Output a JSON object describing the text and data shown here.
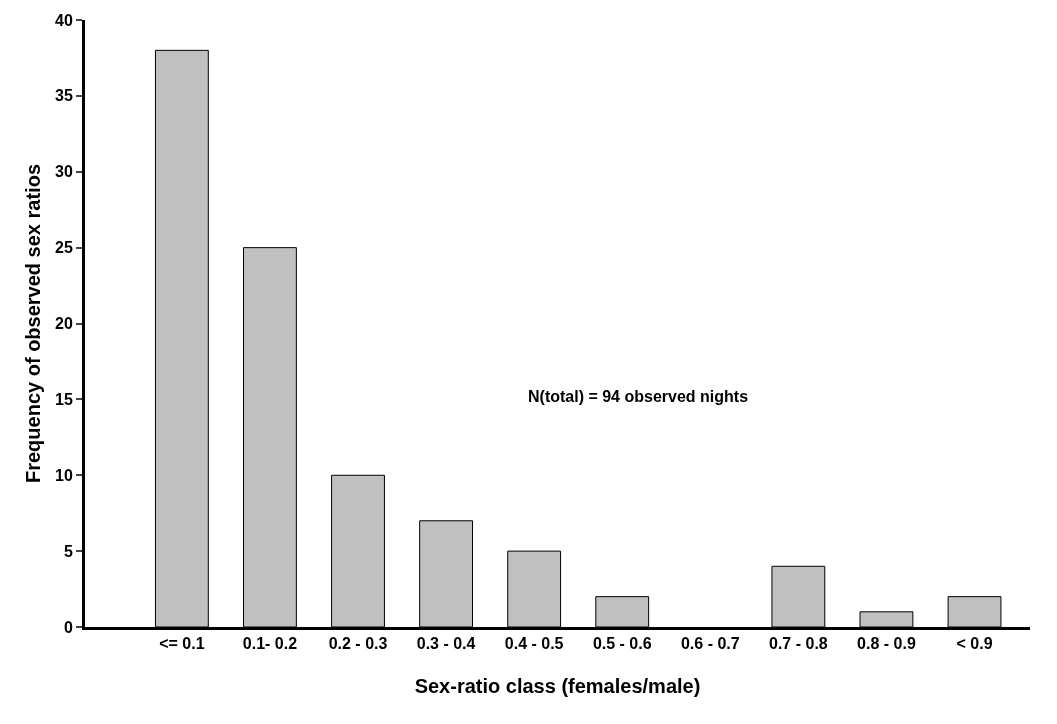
{
  "chart_data": {
    "type": "bar",
    "xlabel": "Sex-ratio class (females/male)",
    "ylabel": "Frequency of observed sex ratios",
    "categories": [
      "<= 0.1",
      "0.1- 0.2",
      "0.2 - 0.3",
      "0.3 - 0.4",
      "0.4 - 0.5",
      "0.5 - 0.6",
      "0.6 - 0.7",
      "0.7 - 0.8",
      "0.8 - 0.9",
      "< 0.9"
    ],
    "values": [
      38,
      25,
      10,
      7,
      5,
      2,
      0,
      4,
      1,
      2
    ],
    "color": "#c0c0c0",
    "ylim": [
      0,
      40
    ],
    "yticks": [
      0,
      5,
      10,
      15,
      20,
      25,
      30,
      35,
      40
    ],
    "annotations": [
      "N(total) = 94 observed nights"
    ]
  }
}
